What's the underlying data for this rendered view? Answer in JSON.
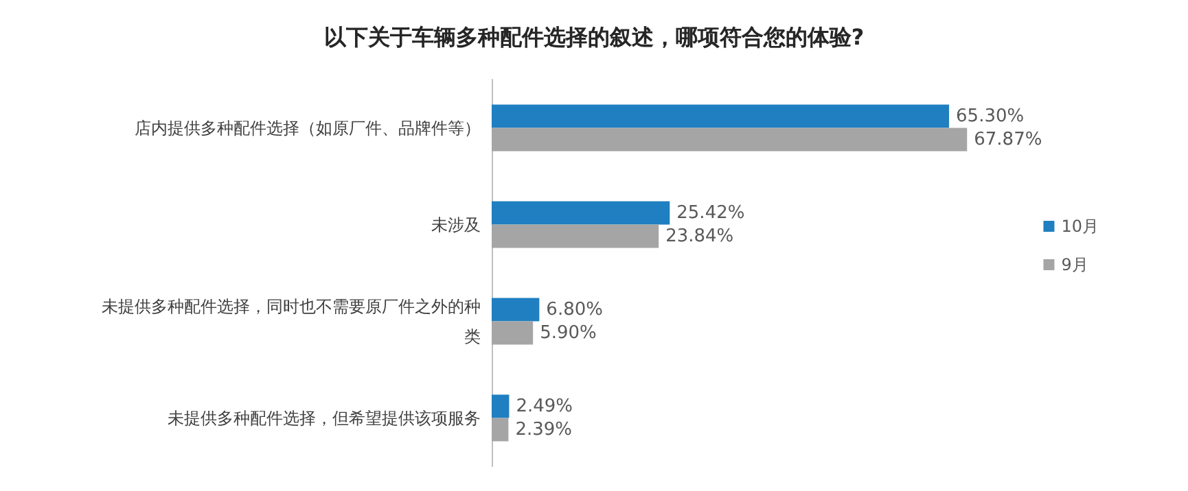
{
  "chart_data": {
    "type": "bar",
    "orientation": "horizontal",
    "title": "以下关于车辆多种配件选择的叙述，哪项符合您的体验?",
    "categories": [
      "店内提供多种配件选择（如原厂件、品牌件等）",
      "未涉及",
      "未提供多种配件选择，同时也不需要原厂件之外的种类",
      "未提供多种配件选择，但希望提供该项服务"
    ],
    "series": [
      {
        "name": "10月",
        "color": "#1f7fc0",
        "values": [
          65.3,
          25.42,
          6.8,
          2.49
        ],
        "value_labels": [
          "65.30%",
          "25.42%",
          "6.80%",
          "2.49%"
        ]
      },
      {
        "name": "9月",
        "color": "#a5a5a5",
        "values": [
          67.87,
          23.84,
          5.9,
          2.39
        ],
        "value_labels": [
          "67.87%",
          "23.84%",
          "5.90%",
          "2.39%"
        ]
      }
    ],
    "legend": "right"
  }
}
